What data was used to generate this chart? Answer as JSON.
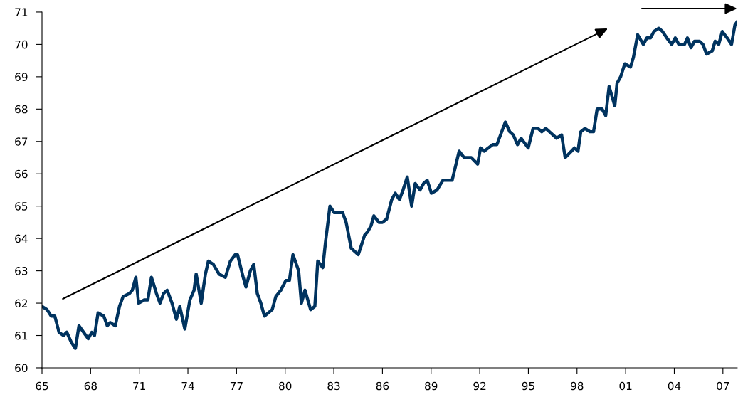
{
  "chart_data": {
    "type": "line",
    "x": [
      1965.0,
      1965.31,
      1965.57,
      1965.79,
      1966.05,
      1966.32,
      1966.53,
      1966.8,
      1967.06,
      1967.28,
      1967.85,
      1968.07,
      1968.24,
      1968.46,
      1968.81,
      1969.03,
      1969.21,
      1969.52,
      1969.78,
      1970.0,
      1970.39,
      1970.57,
      1970.79,
      1970.96,
      1971.31,
      1971.53,
      1971.75,
      1972.06,
      1972.28,
      1972.5,
      1972.72,
      1973.02,
      1973.29,
      1973.5,
      1973.81,
      1974.12,
      1974.38,
      1974.51,
      1974.82,
      1975.08,
      1975.26,
      1975.57,
      1975.92,
      1976.31,
      1976.62,
      1976.92,
      1977.06,
      1977.41,
      1977.58,
      1977.85,
      1978.06,
      1978.28,
      1978.5,
      1978.72,
      1979.2,
      1979.42,
      1979.73,
      1980.04,
      1980.26,
      1980.48,
      1980.83,
      1981.0,
      1981.22,
      1981.57,
      1981.83,
      1982.01,
      1982.32,
      1982.49,
      1982.76,
      1983.02,
      1983.54,
      1983.76,
      1984.07,
      1984.51,
      1984.9,
      1985.08,
      1985.3,
      1985.47,
      1985.78,
      1986.0,
      1986.26,
      1986.57,
      1986.79,
      1987.05,
      1987.27,
      1987.53,
      1987.8,
      1988.02,
      1988.32,
      1988.54,
      1988.76,
      1989.02,
      1989.37,
      1989.73,
      1990.3,
      1990.73,
      1991.04,
      1991.48,
      1991.87,
      1992.05,
      1992.27,
      1992.8,
      1993.06,
      1993.58,
      1993.85,
      1994.07,
      1994.33,
      1994.55,
      1994.99,
      1995.29,
      1995.6,
      1995.82,
      1996.08,
      1996.3,
      1996.74,
      1997.05,
      1997.27,
      1997.66,
      1997.84,
      1998.06,
      1998.23,
      1998.49,
      1998.8,
      1999.02,
      1999.24,
      1999.55,
      1999.77,
      1999.98,
      2000.33,
      2000.47,
      2000.69,
      2000.95,
      2001.3,
      2001.48,
      2001.74,
      2002.09,
      2002.31,
      2002.53,
      2002.75,
      2003.05,
      2003.27,
      2003.54,
      2003.84,
      2004.06,
      2004.28,
      2004.63,
      2004.81,
      2005.03,
      2005.25,
      2005.55,
      2005.77,
      2005.99,
      2006.34,
      2006.52,
      2006.74,
      2006.96,
      2007.26,
      2007.53,
      2007.74,
      2007.88
    ],
    "series": [
      {
        "color": "#00335f",
        "values": [
          61.9,
          61.8,
          61.6,
          61.6,
          61.1,
          61.0,
          61.1,
          60.8,
          60.6,
          61.3,
          60.9,
          61.1,
          61.0,
          61.7,
          61.6,
          61.3,
          61.4,
          61.3,
          61.9,
          62.2,
          62.3,
          62.4,
          62.8,
          62.0,
          62.1,
          62.1,
          62.8,
          62.3,
          62.0,
          62.3,
          62.4,
          62.0,
          61.5,
          61.9,
          61.2,
          62.1,
          62.4,
          62.9,
          62.0,
          62.9,
          63.3,
          63.2,
          62.9,
          62.8,
          63.3,
          63.5,
          63.5,
          62.8,
          62.5,
          63.0,
          63.2,
          62.3,
          62.0,
          61.6,
          61.8,
          62.2,
          62.4,
          62.7,
          62.7,
          63.5,
          63.0,
          62.0,
          62.4,
          61.8,
          61.9,
          63.3,
          63.1,
          63.9,
          65.0,
          64.8,
          64.8,
          64.5,
          63.7,
          63.5,
          64.1,
          64.2,
          64.4,
          64.7,
          64.5,
          64.5,
          64.6,
          65.2,
          65.4,
          65.2,
          65.5,
          65.9,
          65.0,
          65.7,
          65.5,
          65.7,
          65.8,
          65.4,
          65.5,
          65.8,
          65.8,
          66.7,
          66.5,
          66.5,
          66.3,
          66.8,
          66.7,
          66.9,
          66.9,
          67.6,
          67.3,
          67.2,
          66.9,
          67.1,
          66.8,
          67.4,
          67.4,
          67.3,
          67.4,
          67.3,
          67.1,
          67.2,
          66.5,
          66.7,
          66.8,
          66.7,
          67.3,
          67.4,
          67.3,
          67.3,
          68.0,
          68.0,
          67.8,
          68.7,
          68.1,
          68.8,
          69.0,
          69.4,
          69.3,
          69.6,
          70.3,
          70.0,
          70.2,
          70.2,
          70.4,
          70.5,
          70.4,
          70.2,
          70.0,
          70.2,
          70.0,
          70.0,
          70.2,
          69.9,
          70.1,
          70.1,
          70.0,
          69.7,
          69.8,
          70.1,
          70.0,
          70.4,
          70.2,
          70.0,
          70.6,
          70.7
        ]
      }
    ],
    "xlim": [
      1965,
      2007.88
    ],
    "ylim": [
      60,
      71
    ],
    "xticks": [
      {
        "value": 1965,
        "label": "65"
      },
      {
        "value": 1968,
        "label": "68"
      },
      {
        "value": 1971,
        "label": "71"
      },
      {
        "value": 1974,
        "label": "74"
      },
      {
        "value": 1977,
        "label": "77"
      },
      {
        "value": 1980,
        "label": "80"
      },
      {
        "value": 1983,
        "label": "83"
      },
      {
        "value": 1986,
        "label": "86"
      },
      {
        "value": 1989,
        "label": "89"
      },
      {
        "value": 1992,
        "label": "92"
      },
      {
        "value": 1995,
        "label": "95"
      },
      {
        "value": 1998,
        "label": "98"
      },
      {
        "value": 2001,
        "label": "01"
      },
      {
        "value": 2004,
        "label": "04"
      },
      {
        "value": 2007,
        "label": "07"
      }
    ],
    "yticks": [
      60,
      61,
      62,
      63,
      64,
      65,
      66,
      67,
      68,
      69,
      70,
      71
    ],
    "grid": false,
    "marker": "none",
    "line_style": "solid"
  }
}
